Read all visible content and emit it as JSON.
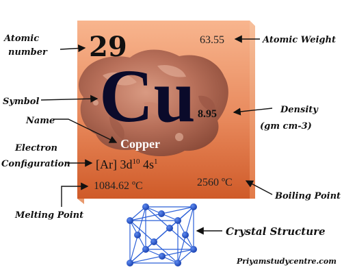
{
  "element": {
    "atomic_number": "29",
    "atomic_weight": "63.55",
    "symbol": "Cu",
    "name": "Copper",
    "density": "8.95",
    "configuration": {
      "core": "[Ar] 3d",
      "d_count": "10",
      "s_part": " 4s",
      "s_count": "1"
    },
    "melting_point": "1084.62 ºC",
    "boiling_point": "2560 ºC"
  },
  "labels": {
    "atomic_number": [
      "Atomic",
      "number"
    ],
    "atomic_weight": "Atomic Weight",
    "symbol": "Symbol",
    "name": "Name",
    "density": [
      "Density",
      "(gm cm-3)"
    ],
    "electron_configuration": [
      "Electron",
      "Configuration"
    ],
    "melting_point": "Melting Point",
    "boiling_point": "Boiling Point",
    "crystal_structure": "Crystal Structure"
  },
  "credit": "Priyamstudycentre.com",
  "colors": {
    "tile_top": "#f8b58e",
    "tile_bottom": "#cf5a28",
    "tile_side": "#f4a87a",
    "lattice_line": "#2a5fd8",
    "lattice_atom": "#1c49c4",
    "copper_nugget": "#b87058"
  }
}
